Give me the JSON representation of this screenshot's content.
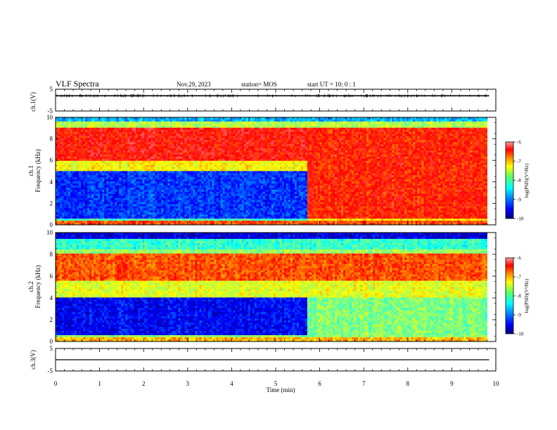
{
  "header": {
    "title": "VLF Spectra",
    "date": "Nov.29, 2023",
    "station": "station= MOS",
    "start": "start  UT =   10: 0  : 1"
  },
  "chart_data": [
    {
      "type": "line",
      "panel": "ch1_waveform",
      "ylabel": "ch.1(V)",
      "yticks": [
        "5",
        "-5"
      ],
      "ylim": [
        -5,
        5
      ],
      "series": [
        {
          "values": [
            2,
            2,
            2,
            2,
            2,
            2,
            2,
            2,
            2,
            2,
            2
          ]
        }
      ],
      "x": [
        0,
        1,
        2,
        3,
        4,
        5,
        6,
        7,
        8,
        9,
        9.85
      ]
    },
    {
      "type": "heatmap",
      "panel": "ch1_spectrogram",
      "ylabel": "ch.1\nFrequency (kHz)",
      "ylabel_line1": "ch.1",
      "ylabel_line2": "Frequency (kHz)",
      "yticks": [
        "10",
        "8",
        "6",
        "4",
        "2",
        "0"
      ],
      "ylim": [
        0,
        10
      ],
      "xlim": [
        0,
        10
      ],
      "colorbar": {
        "label": "log(PSD)(V²/Hz)",
        "ticks": [
          "-6",
          "-7",
          "-8",
          "-9",
          "-10"
        ],
        "range": [
          -10,
          -6
        ]
      },
      "regions": [
        {
          "x": [
            0,
            5.7
          ],
          "freq_kHz": [
            6,
            9
          ],
          "log_psd": -6.5
        },
        {
          "x": [
            0,
            5.7
          ],
          "freq_kHz": [
            0.5,
            5
          ],
          "log_psd": -9.3
        },
        {
          "x": [
            5.7,
            9.85
          ],
          "freq_kHz": [
            0.5,
            9
          ],
          "log_psd": -6.6
        }
      ]
    },
    {
      "type": "heatmap",
      "panel": "ch2_spectrogram",
      "ylabel": "ch.2\nFrequency (kHz)",
      "ylabel_line1": "ch.2",
      "ylabel_line2": "Frequency (kHz)",
      "yticks": [
        "10",
        "8",
        "6",
        "4",
        "2",
        "0"
      ],
      "ylim": [
        0,
        10
      ],
      "xlim": [
        0,
        10
      ],
      "colorbar": {
        "label": "log(PSD)(V²/Hz)",
        "ticks": [
          "-6",
          "-7",
          "-8",
          "-9",
          "-10"
        ],
        "range": [
          -10,
          -6
        ]
      },
      "regions": [
        {
          "x": [
            0,
            9.85
          ],
          "freq_kHz": [
            5.5,
            8
          ],
          "log_psd": -6.8
        },
        {
          "x": [
            0,
            5.7
          ],
          "freq_kHz": [
            0.5,
            4
          ],
          "log_psd": -9.5
        },
        {
          "x": [
            5.7,
            9.85
          ],
          "freq_kHz": [
            0.5,
            4
          ],
          "log_psd": -8.0
        }
      ]
    },
    {
      "type": "line",
      "panel": "ch3_waveform",
      "ylabel": "ch.3(V)",
      "yticks": [
        "5",
        "-5"
      ],
      "ylim": [
        -5,
        5
      ],
      "series": [
        {
          "values": [
            0,
            0,
            0,
            0,
            0,
            0,
            0,
            0,
            0,
            0,
            0
          ]
        }
      ],
      "x": [
        0,
        1,
        2,
        3,
        4,
        5,
        6,
        7,
        8,
        9,
        9.85
      ]
    }
  ],
  "xaxis": {
    "label": "Time (min)",
    "ticks": [
      "0",
      "1",
      "2",
      "3",
      "4",
      "5",
      "6",
      "7",
      "8",
      "9",
      "10"
    ],
    "range": [
      0,
      10
    ]
  },
  "colors": {
    "jet": [
      "#00007f",
      "#0000ff",
      "#0080ff",
      "#00ffff",
      "#80ff80",
      "#ffff00",
      "#ff8000",
      "#ff0000",
      "#ff8080"
    ]
  }
}
